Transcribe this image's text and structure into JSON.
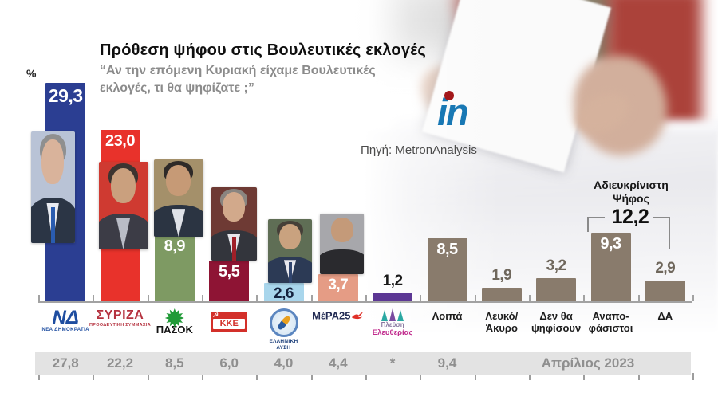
{
  "header": {
    "title": "Πρόθεση ψήφου στις Βουλευτικές εκλογές",
    "subtitle_lines": [
      "“Αν την επόμενη Κυριακή είχαμε Βουλευτικές",
      "εκλογές, τι θα ψηφίζατε ;”"
    ],
    "unit_label": "%"
  },
  "source": {
    "logo_text": "in",
    "label": "Πηγή: MetronAnalysis"
  },
  "callout": {
    "label_lines": [
      "Αδιευκρίνιστη",
      "Ψήφος"
    ],
    "value": "12,2"
  },
  "previous_row": {
    "values": [
      "27,8",
      "22,2",
      "8,5",
      "6,0",
      "4,0",
      "4,4",
      "*",
      "9,4"
    ],
    "period": "Απρίλιος 2023"
  },
  "chart_data": {
    "type": "bar",
    "title": "Πρόθεση ψήφου στις Βουλευτικές εκλογές",
    "subtitle": "Αν την επόμενη Κυριακή είχαμε Βουλευτικές εκλογές, τι θα ψηφίζατε ;",
    "unit": "%",
    "ylim": [
      0,
      30
    ],
    "grid": false,
    "categories": [
      "ΝΔ",
      "ΣΥΡΙΖΑ",
      "ΠΑΣΟΚ",
      "ΚΚΕ",
      "Ελληνική Λύση",
      "ΜέΡΑ25",
      "Πλεύση Ελευθερίας",
      "Λοιπά",
      "Λευκό/Άκυρο",
      "Δεν θα ψηφίσουν",
      "Αναποφάσιστοι",
      "ΔΑ"
    ],
    "values": [
      29.3,
      23.0,
      8.9,
      5.5,
      2.6,
      3.7,
      1.2,
      8.5,
      1.9,
      3.2,
      9.3,
      2.9
    ],
    "undecided_combined_value": 12.2,
    "previous_series": {
      "name": "Απρίλιος 2023",
      "values": [
        27.8,
        22.2,
        8.5,
        6.0,
        4.0,
        4.4,
        null,
        9.4,
        null,
        null,
        null,
        null
      ]
    },
    "columns": [
      {
        "id": "nd",
        "category": "ΝΔ",
        "display": "29,3",
        "color": "#2b3e92",
        "value_placement": "inside",
        "value_color": "#ffffff",
        "value_size": 23,
        "photo": "mitsotakis",
        "logo": {
          "type": "nd",
          "text": "ΝΔ",
          "subtext": "ΝΕΑ ΔΗΜΟΚΡΑΤΙΑ",
          "color": "#1e4da0"
        }
      },
      {
        "id": "syriza",
        "category": "ΣΥΡΙΖΑ",
        "display": "23,0",
        "color": "#e8322b",
        "value_placement": "inside",
        "value_color": "#ffffff",
        "value_size": 20,
        "photo": "tsipras",
        "logo": {
          "type": "syriza",
          "text": "ΣΥΡΙΖΑ",
          "subtext": "ΠΡΟΟΔΕΥΤΙΚΗ ΣΥΜΜΑΧΙΑ",
          "color": "#b5323f"
        }
      },
      {
        "id": "pasok",
        "category": "ΠΑΣΟΚ",
        "display": "8,9",
        "color": "#7e9a63",
        "value_placement": "inside",
        "value_color": "#ffffff",
        "value_size": 20,
        "photo": "androulakis",
        "logo": {
          "type": "pasok",
          "text": "ΠΑΣΟΚ",
          "accent": "#219a38"
        }
      },
      {
        "id": "kke",
        "category": "ΚΚΕ",
        "display": "5,5",
        "color": "#8e1434",
        "value_placement": "inside",
        "value_color": "#ffffff",
        "value_size": 20,
        "photo": "koutsoumpas",
        "logo": {
          "type": "kke",
          "text": "ΚΚΕ",
          "color": "#d3302a"
        }
      },
      {
        "id": "elliniki-lysi",
        "category": "Ελληνική Λύση",
        "display": "2,6",
        "color": "#a9d6ec",
        "value_placement": "inside",
        "value_color": "#15223d",
        "value_size": 19,
        "photo": "velopoulos",
        "logo": {
          "type": "el",
          "text_lines": [
            "ΕΛΛΗΝΙΚΗ",
            "ΛΥΣΗ"
          ],
          "color": "#1c3f7a"
        }
      },
      {
        "id": "mera25",
        "category": "ΜέΡΑ25",
        "display": "3,7",
        "color": "#e59c85",
        "value_placement": "inside",
        "value_color": "#ffffff",
        "value_size": 19,
        "photo": "varoufakis",
        "logo": {
          "type": "mera",
          "text": "ΜέΡΑ25",
          "color": "#232c54",
          "accent": "#e03028"
        }
      },
      {
        "id": "plefsi",
        "category": "Πλεύση Ελευθερίας",
        "display": "1,2",
        "color": "#5c3794",
        "value_placement": "above",
        "value_color": "#1a1a1a",
        "value_size": 19,
        "photo": null,
        "logo": {
          "type": "plefsi",
          "text1": "Πλεύση",
          "text2": "Ελευθερίας",
          "color1": "#8878a0",
          "color2": "#c02a8c"
        }
      },
      {
        "id": "loipa",
        "category": "Λοιπά",
        "display": "8,5",
        "color": "#897b6c",
        "value_placement": "inside",
        "value_color": "#ffffff",
        "value_size": 20,
        "photo": null,
        "label_lines": [
          "Λοιπά"
        ]
      },
      {
        "id": "lefko-akyro",
        "category": "Λευκό/Άκυρο",
        "display": "1,9",
        "color": "#897b6c",
        "value_placement": "above",
        "value_color": "#6f675c",
        "value_size": 19,
        "photo": null,
        "label_lines": [
          "Λευκό/",
          "Άκυρο"
        ]
      },
      {
        "id": "den-tha-psifisoun",
        "category": "Δεν θα ψηφίσουν",
        "display": "3,2",
        "color": "#897b6c",
        "value_placement": "above",
        "value_color": "#6f675c",
        "value_size": 19,
        "photo": null,
        "label_lines": [
          "Δεν θα",
          "ψηφίσουν"
        ]
      },
      {
        "id": "anapofasistoi",
        "category": "Αναποφάσιστοι",
        "display": "9,3",
        "color": "#897b6c",
        "value_placement": "inside",
        "value_color": "#ffffff",
        "value_size": 20,
        "photo": null,
        "label_lines": [
          "Αναπο-",
          "φάσιστοι"
        ]
      },
      {
        "id": "da",
        "category": "ΔΑ",
        "display": "2,9",
        "color": "#897b6c",
        "value_placement": "above",
        "value_color": "#6f675c",
        "value_size": 19,
        "photo": null,
        "label_lines": [
          "ΔΑ"
        ]
      }
    ]
  }
}
